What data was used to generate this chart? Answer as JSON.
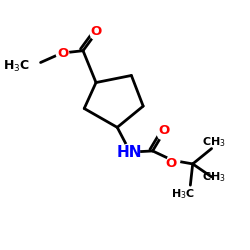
{
  "background_color": "#ffffff",
  "bond_color": "#000000",
  "bond_width": 2.0,
  "atom_colors": {
    "O": "#ff0000",
    "N": "#0000ff",
    "C": "#000000"
  },
  "font_size_label": 9.5,
  "font_size_small": 8.0,
  "xlim": [
    0,
    10
  ],
  "ylim": [
    0,
    10
  ]
}
